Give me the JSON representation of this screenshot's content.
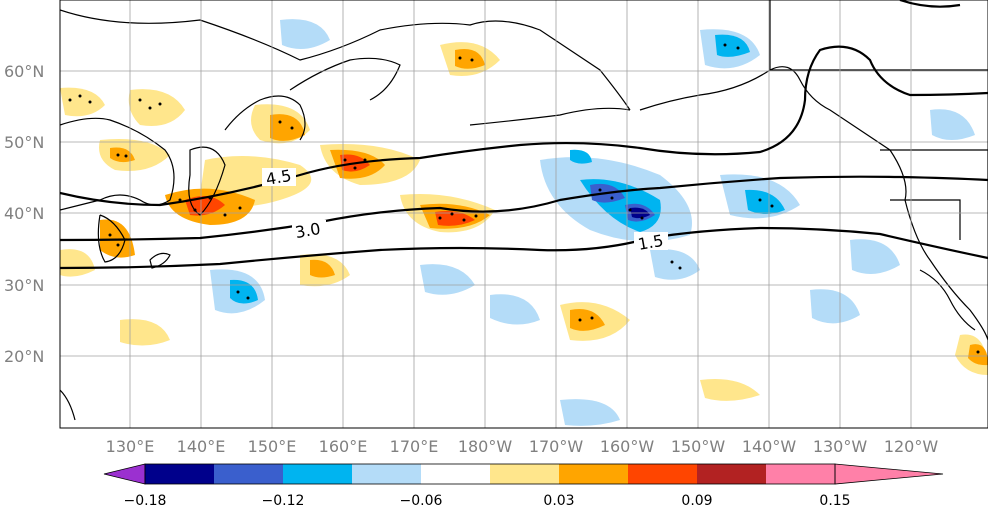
{
  "map": {
    "lat_ticks": [
      "60°N",
      "50°N",
      "40°N",
      "30°N",
      "20°N"
    ],
    "lon_ticks": [
      "130°E",
      "140°E",
      "150°E",
      "160°E",
      "170°E",
      "180°W",
      "170°W",
      "160°W",
      "150°W",
      "140°W",
      "130°W",
      "120°W"
    ],
    "contour_labels": [
      "4.5",
      "3.0",
      "1.5"
    ]
  },
  "colorbar": {
    "tick_labels": [
      "−0.18",
      "−0.12",
      "−0.06",
      "0.03",
      "0.09",
      "0.15"
    ],
    "colors": [
      "#9b30d0",
      "#00008b",
      "#3a5fcd",
      "#00b4f0",
      "#b4dcf8",
      "#ffffff",
      "#ffe68c",
      "#ffa500",
      "#ff4500",
      "#b22222",
      "#ff80a8"
    ]
  },
  "colors": {
    "land_outline": "#000000",
    "grid": "#a0a0a0"
  }
}
